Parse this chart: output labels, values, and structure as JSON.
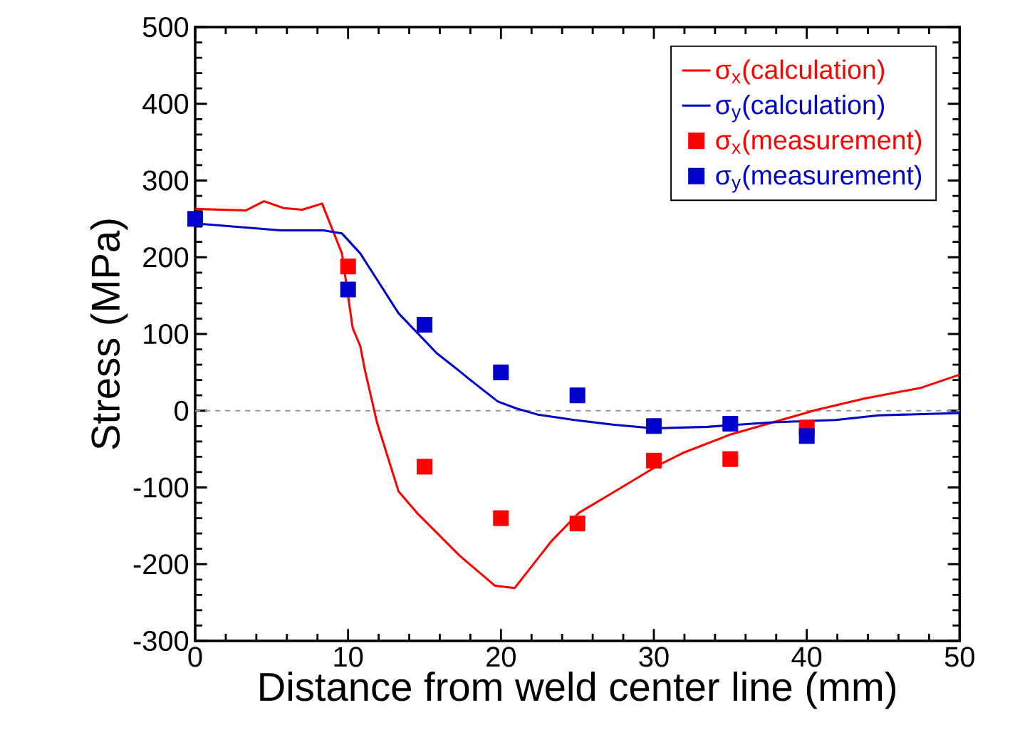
{
  "chart_data": {
    "type": "line",
    "xlabel": "Distance from weld center line (mm)",
    "ylabel": "Stress  (MPa)",
    "xlim": [
      0,
      50
    ],
    "ylim": [
      -300,
      500
    ],
    "xticks": [
      0,
      10,
      20,
      30,
      40,
      50
    ],
    "yticks": [
      -300,
      -200,
      -100,
      0,
      100,
      200,
      300,
      400,
      500
    ],
    "grid": false,
    "legend": "top right",
    "ref_lines": [
      {
        "axis": "y",
        "value": 0,
        "color": "#999999",
        "line_style": "dashed"
      }
    ],
    "series": [
      {
        "name": "σ$_{x}$(calculation)",
        "color": "#ff0000",
        "marker": "none",
        "line_style": "solid",
        "x": [
          0,
          3.3,
          4.5,
          5.8,
          7.0,
          8.3,
          9.6,
          10.3,
          10.8,
          11.1,
          11.9,
          13.3,
          14.5,
          17.3,
          19.6,
          20.9,
          23.3,
          25.1,
          27.3,
          30.3,
          31.9,
          35.0,
          37.8,
          40.6,
          43.8,
          47.5,
          50
        ],
        "values": [
          263,
          261,
          273,
          264,
          262,
          270,
          205,
          108,
          84,
          53,
          -16,
          -105,
          -133,
          -189,
          -228,
          -231,
          -170,
          -133,
          -107,
          -71,
          -55,
          -31,
          -15,
          1,
          16,
          30,
          47
        ]
      },
      {
        "name": "σ$_{y}$(calculation)",
        "color": "#0000cc",
        "marker": "none",
        "line_style": "solid",
        "x": [
          0,
          5.6,
          8.4,
          9.6,
          10.8,
          13.3,
          15.8,
          17.2,
          18.0,
          19.8,
          21.0,
          22.4,
          24.8,
          27.3,
          30.0,
          33.5,
          37.8,
          41.9,
          44.7,
          50
        ],
        "values": [
          244,
          235,
          235,
          231,
          205,
          127,
          75,
          53,
          40,
          12,
          3,
          -5,
          -12,
          -18,
          -23,
          -21,
          -15,
          -12,
          -6,
          -3
        ]
      },
      {
        "name": "σ$_{x}$(measurement)",
        "type": "scatter",
        "color": "#ff0000",
        "marker": "square",
        "x": [
          10,
          15,
          20,
          25,
          30,
          35,
          40
        ],
        "values": [
          188,
          -73,
          -140,
          -147,
          -65,
          -63,
          -22
        ]
      },
      {
        "name": "σ$_{y}$(measurement)",
        "type": "scatter",
        "color": "#0000cc",
        "marker": "square",
        "x": [
          0,
          10,
          15,
          20,
          25,
          30,
          35,
          40
        ],
        "values": [
          250,
          158,
          112,
          50,
          20,
          -20,
          -17,
          -33
        ]
      }
    ]
  }
}
